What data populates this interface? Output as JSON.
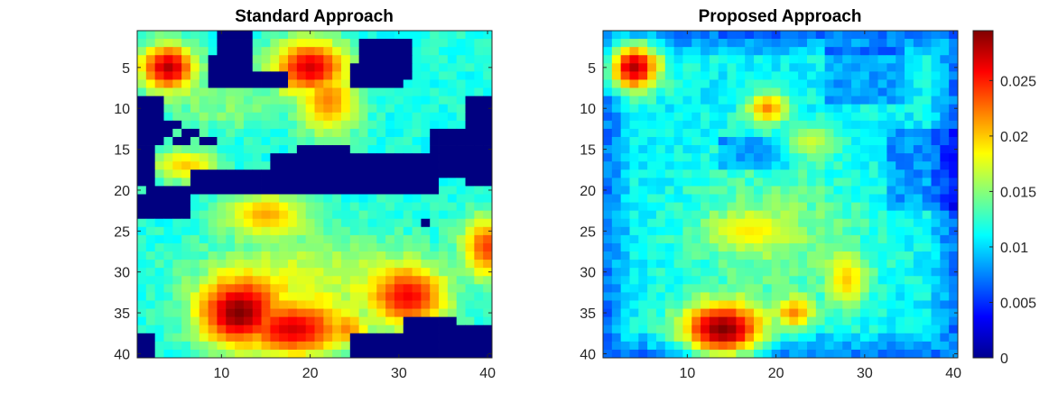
{
  "chart_data": [
    {
      "type": "heatmap",
      "title": "Standard Approach",
      "xlabel": "",
      "ylabel": "",
      "xlim": [
        0.5,
        40.5
      ],
      "ylim": [
        0.5,
        40.5
      ],
      "x_ticks": [
        10,
        20,
        30,
        40
      ],
      "y_ticks": [
        5,
        10,
        15,
        20,
        25,
        30,
        35,
        40
      ],
      "y_direction": "reversed",
      "grid_size": [
        40,
        40
      ],
      "colormap": "jet",
      "clim": [
        0,
        0.0295
      ],
      "features": {
        "hotspots": [
          {
            "x": 4,
            "y": 5,
            "value": 0.028,
            "sx": 2.2,
            "sy": 2.0
          },
          {
            "x": 20,
            "y": 5,
            "value": 0.027,
            "sx": 3.0,
            "sy": 2.4
          },
          {
            "x": 22,
            "y": 9,
            "value": 0.022,
            "sx": 2.4,
            "sy": 3.0
          },
          {
            "x": 12,
            "y": 35,
            "value": 0.0295,
            "sx": 3.2,
            "sy": 3.0
          },
          {
            "x": 18,
            "y": 37,
            "value": 0.027,
            "sx": 4.2,
            "sy": 2.3
          },
          {
            "x": 31,
            "y": 33,
            "value": 0.026,
            "sx": 3.0,
            "sy": 2.6
          },
          {
            "x": 40,
            "y": 27,
            "value": 0.024,
            "sx": 2.0,
            "sy": 2.6
          },
          {
            "x": 6,
            "y": 17,
            "value": 0.02,
            "sx": 2.6,
            "sy": 1.4
          },
          {
            "x": 15,
            "y": 23,
            "value": 0.021,
            "sx": 3.2,
            "sy": 1.8
          },
          {
            "x": 24,
            "y": 37,
            "value": 0.022,
            "sx": 1.8,
            "sy": 1.6
          }
        ],
        "zero_region": "dark blue (value 0) patches along rows 1-22 and a band across rows 16-20"
      }
    },
    {
      "type": "heatmap",
      "title": "Proposed Approach",
      "xlabel": "",
      "ylabel": "",
      "xlim": [
        0.5,
        40.5
      ],
      "ylim": [
        0.5,
        40.5
      ],
      "x_ticks": [
        10,
        20,
        30,
        40
      ],
      "y_ticks": [
        5,
        10,
        15,
        20,
        25,
        30,
        35,
        40
      ],
      "y_direction": "reversed",
      "grid_size": [
        40,
        40
      ],
      "colormap": "jet",
      "clim": [
        0,
        0.0295
      ],
      "features": {
        "hotspots": [
          {
            "x": 4,
            "y": 5,
            "value": 0.028,
            "sx": 2.0,
            "sy": 2.0
          },
          {
            "x": 19,
            "y": 10,
            "value": 0.022,
            "sx": 1.6,
            "sy": 1.4
          },
          {
            "x": 14,
            "y": 37,
            "value": 0.0295,
            "sx": 3.3,
            "sy": 2.4
          },
          {
            "x": 22,
            "y": 35,
            "value": 0.022,
            "sx": 1.6,
            "sy": 1.4
          },
          {
            "x": 28,
            "y": 31,
            "value": 0.02,
            "sx": 1.6,
            "sy": 2.4
          },
          {
            "x": 17,
            "y": 25,
            "value": 0.019,
            "sx": 3.0,
            "sy": 1.6
          },
          {
            "x": 24,
            "y": 14,
            "value": 0.017,
            "sx": 2.0,
            "sy": 1.4
          }
        ],
        "background_level": "mostly cyan-green 0.008-0.016, blue 0.003-0.006 at edges"
      }
    }
  ],
  "colorbar": {
    "range": [
      0,
      0.0295
    ],
    "ticks": [
      {
        "value": 0,
        "label": "0"
      },
      {
        "value": 0.005,
        "label": "0.005"
      },
      {
        "value": 0.01,
        "label": "0.01"
      },
      {
        "value": 0.015,
        "label": "0.015"
      },
      {
        "value": 0.02,
        "label": "0.02"
      },
      {
        "value": 0.025,
        "label": "0.025"
      }
    ]
  }
}
